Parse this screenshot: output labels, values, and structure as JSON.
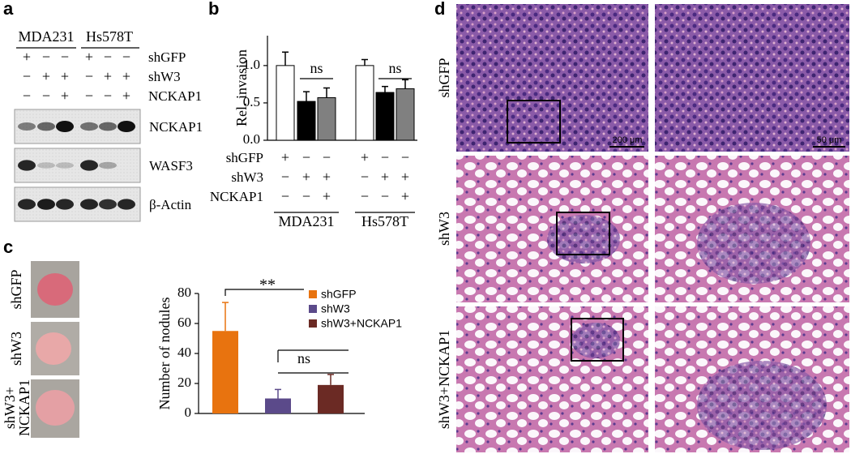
{
  "panels": [
    "a",
    "b",
    "c",
    "d"
  ],
  "blot": {
    "cell_lines": [
      "MDA231",
      "Hs578T"
    ],
    "conditions": [
      {
        "label": "shGFP",
        "signs": [
          "+",
          "−",
          "−",
          "+",
          "−",
          "−"
        ]
      },
      {
        "label": "shW3",
        "signs": [
          "−",
          "+",
          "+",
          "−",
          "+",
          "+"
        ]
      },
      {
        "label": "NCKAP1",
        "signs": [
          "−",
          "−",
          "+",
          "−",
          "−",
          "+"
        ]
      }
    ],
    "bands": [
      "NCKAP1",
      "WASF3",
      "β-Actin"
    ]
  },
  "photos": {
    "labels": [
      "shGFP",
      "shW3",
      "shW3+",
      "NCKAP1"
    ]
  },
  "histology": {
    "labels": [
      "shGFP",
      "shW3",
      "shW3+NCKAP1"
    ],
    "scale_bars": [
      "200 μm",
      "50 μm"
    ]
  },
  "chart_data": [
    {
      "type": "bar",
      "y_label": "Rel. invasion",
      "ylim": [
        0,
        1.4
      ],
      "yticks": [
        {
          "value": 0,
          "label": "0.0"
        },
        {
          "value": 0.5,
          "label": "0.5"
        },
        {
          "value": 1,
          "label": "1.0"
        }
      ],
      "values": [
        1.0,
        0.52,
        0.57,
        1.0,
        0.64,
        0.69
      ],
      "errors": [
        0.18,
        0.13,
        0.13,
        0.08,
        0.08,
        0.12
      ],
      "colors": [
        "#ffffff",
        "#000000",
        "#808080",
        "#ffffff",
        "#000000",
        "#808080"
      ],
      "groups": [
        "MDA231",
        "Hs578T"
      ],
      "conditions": [
        {
          "label": "shGFP",
          "signs": [
            "+",
            "−",
            "−",
            "+",
            "−",
            "−"
          ]
        },
        {
          "label": "shW3",
          "signs": [
            "−",
            "+",
            "+",
            "−",
            "+",
            "+"
          ]
        },
        {
          "label": "NCKAP1",
          "signs": [
            "−",
            "−",
            "+",
            "−",
            "−",
            "+"
          ]
        }
      ],
      "annotations": [
        "ns",
        "ns"
      ]
    },
    {
      "type": "bar",
      "y_label": "Number of nodules",
      "ylim": [
        0,
        80
      ],
      "yticks": [
        0,
        20,
        40,
        60,
        80
      ],
      "series": [
        {
          "name": "shGFP",
          "color": "#e8730f",
          "values": [
            55
          ],
          "errors": [
            19
          ]
        },
        {
          "name": "shW3",
          "color": "#5b4a8a",
          "values": [
            10
          ],
          "errors": [
            6
          ]
        },
        {
          "name": "shW3+NCKAP1",
          "color": "#6b2a24",
          "values": [
            19
          ],
          "errors": [
            7
          ]
        }
      ],
      "annotations": [
        "**",
        "ns"
      ]
    }
  ]
}
